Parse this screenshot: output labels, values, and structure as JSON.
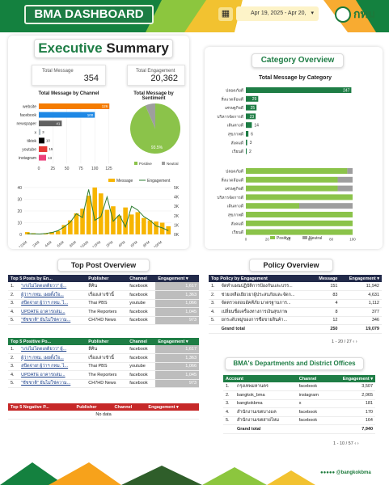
{
  "header": {
    "title": "BMA DASHBOARD",
    "date_range": "Apr 19, 2025 - Apr 20,",
    "brand": "กทม"
  },
  "exec": {
    "title_a": "Executive",
    "title_b": "Summary"
  },
  "kpi": {
    "total_message_label": "Total Message",
    "total_message": "354",
    "total_engagement_label": "Total Engagement",
    "total_engagement": "20,362"
  },
  "charts": {
    "channel": {
      "title": "Total Message by Channel",
      "type": "bar",
      "categories": [
        "website",
        "facebook",
        "newspaper",
        "x",
        "tiktok",
        "youtube",
        "instagram"
      ],
      "values": [
        126,
        100,
        41,
        3,
        10,
        15,
        13
      ],
      "labels": [
        "126",
        "100",
        "41",
        "3",
        "10",
        "15",
        "13"
      ],
      "colors": [
        "#f57c00",
        "#1e88e5",
        "#616161",
        "#b0bec5",
        "#000000",
        "#e53935",
        "#ec407a"
      ],
      "xticks": [
        "0",
        "25",
        "50",
        "75",
        "100",
        "125"
      ],
      "xlim": [
        0,
        130
      ]
    },
    "sentiment": {
      "title": "Total Message by Sentiment",
      "type": "pie",
      "slices": [
        {
          "name": "Positive",
          "value": 93.5,
          "color": "#8bc34a"
        },
        {
          "name": "Neutral",
          "value": 6.5,
          "color": "#9e9e9e"
        }
      ],
      "label": "93.5%",
      "legend": [
        "Positive",
        "Neutral"
      ]
    },
    "time": {
      "type": "bar+line",
      "legend": [
        "Message",
        "Engagement"
      ],
      "x": [
        "12AM",
        "2AM",
        "4AM",
        "6AM",
        "8AM",
        "10AM",
        "12PM",
        "2PM",
        "4PM",
        "6PM",
        "8PM",
        "10PM"
      ],
      "message": [
        2,
        1,
        0.5,
        1,
        2,
        3,
        8,
        12,
        18,
        22,
        33,
        40,
        35,
        21,
        24,
        16,
        23,
        17,
        19,
        14,
        12,
        11,
        10,
        7
      ],
      "engagement": [
        80,
        60,
        40,
        100,
        200,
        400,
        800,
        1300,
        2200,
        1800,
        4800,
        1500,
        1900,
        4000,
        1400,
        2100,
        800,
        3000,
        2600,
        1900,
        1500,
        900,
        700,
        400
      ],
      "yleft": [
        "0",
        "10",
        "20",
        "30",
        "40"
      ],
      "yright": [
        "0K",
        "1K",
        "2K",
        "3K",
        "4K",
        "5K"
      ]
    },
    "category": {
      "title": "Total Message by Category",
      "type": "bar",
      "categories": [
        "ปลอดภัยดี",
        "สิ่งแวดล้อมดี",
        "เศรษฐกิจดี",
        "บริหารจัดการดี",
        "เดินทางดี",
        "สุขภาพดี",
        "สังคมดี",
        "เรียนดี"
      ],
      "values": [
        247,
        29,
        25,
        23,
        14,
        6,
        3,
        2
      ],
      "labels": [
        "247",
        "29",
        "25",
        "23",
        "14",
        "6",
        "3",
        "2"
      ],
      "xlim": [
        0,
        250
      ]
    },
    "category_sentiment": {
      "type": "stacked-bar",
      "categories": [
        "ปลอดภัยดี",
        "สิ่งแวดล้อมดี",
        "เศรษฐกิจดี",
        "บริหารจัดการดี",
        "เดินทางดี",
        "สุขภาพดี",
        "สังคมดี",
        "เรียนดี"
      ],
      "positive": [
        0.95,
        0.86,
        0.86,
        1,
        0.5,
        1,
        1,
        1
      ],
      "xticks": [
        "0",
        "20",
        "40",
        "60",
        "80",
        "100"
      ],
      "legend": [
        "Positive",
        "Neutral"
      ]
    }
  },
  "top_post": {
    "title": "Top Post Overview",
    "posts": {
      "headers": [
        "Top 5 Posts by En...",
        "Publisher",
        "Channel",
        "Engagement"
      ],
      "rows": [
        [
          "1.",
          "\"เก่งไม่โดดเดดิยวว\" ผู้...",
          "ลีคิน",
          "facebook",
          "1,617"
        ],
        [
          "2.",
          "ผู้ว่าฯ กทม. เผยตั้งใจ...",
          "เรื่องเล่าเช้านี้",
          "facebook",
          "1,363"
        ],
        [
          "3.",
          "สปีดจ่าย! ผู้ว่าฯ กทม. ไ...",
          "Thai PBS",
          "youtube",
          "1,066"
        ],
        [
          "4.",
          "UPDATE อาคารถล่ม...",
          "The Reporters",
          "facebook",
          "1,045"
        ],
        [
          "5.",
          "\"ชัชชาติ\" ยันไม่ใช่ความ...",
          "CH7HD News",
          "facebook",
          "973"
        ]
      ]
    },
    "positive": {
      "headers": [
        "Top 5 Positive Po...",
        "Publisher",
        "Channel",
        "Engagement"
      ],
      "rows": [
        [
          "1.",
          "\"เก่งไม่โดดเดดิยวว\" ผู้...",
          "ลีคิน",
          "facebook",
          "1,617"
        ],
        [
          "2.",
          "ผู้ว่าฯ กทม. เผยตั้งใจ...",
          "เรื่องเล่าเช้านี้",
          "facebook",
          "1,363"
        ],
        [
          "3.",
          "สปีดจ่าย! ผู้ว่าฯ กทม. ไ...",
          "Thai PBS",
          "youtube",
          "1,066"
        ],
        [
          "4.",
          "UPDATE อาคารถล่ม...",
          "The Reporters",
          "facebook",
          "1,045"
        ],
        [
          "5.",
          "\"ชัชชาติ\" ยันไม่ใช่ความ...",
          "CH7HD News",
          "facebook",
          "973"
        ]
      ]
    },
    "negative": {
      "headers": [
        "Top 5 Negative P...",
        "Publisher",
        "Channel",
        "Engagement"
      ],
      "empty": "No data"
    }
  },
  "policy": {
    "title": "Policy Overview",
    "headers": [
      "Top Policy by Engagement",
      "Message",
      "Engagement"
    ],
    "rows": [
      [
        "1.",
        "จัดทำแผนปฏิบัติการป้องกันและบรร...",
        "151",
        "11,942"
      ],
      [
        "2.",
        "ช่วยเหลือเยียวยาผู้ประสบภัยและจัดก...",
        "83",
        "4,631"
      ],
      [
        "3.",
        "จัดตรวจสอบอัคคีภัย มาตรฐานการ...",
        "4",
        "1,112"
      ],
      [
        "4.",
        "เปลี่ยนชื่อเครื่องทางการเงินสุขภาพ",
        "8",
        "377"
      ],
      [
        "5.",
        "ยกระดับหมู่ของการซื้อขายสินค้า...",
        "12",
        "346"
      ]
    ],
    "total_label": "Grand total",
    "total_message": "250",
    "total_engagement": "19,079",
    "pager": "1 - 20 / 27"
  },
  "departments": {
    "title": "BMA's Departments and District Offices",
    "headers": [
      "Account",
      "Channel",
      "Engagement"
    ],
    "rows": [
      [
        "1.",
        "กรุงเทพมหานคร",
        "facebook",
        "3,507"
      ],
      [
        "2.",
        "bangkok_bma",
        "instagram",
        "2,065"
      ],
      [
        "3.",
        "bangkokbma",
        "x",
        "181"
      ],
      [
        "4.",
        "สำนักงานเขตบางแค",
        "facebook",
        "170"
      ],
      [
        "5.",
        "สำนักงานเขตสายไหม",
        "facebook",
        "164"
      ]
    ],
    "total_label": "Grand total",
    "total_engagement": "7,940",
    "pager": "1 - 10 / 57"
  },
  "footer": {
    "handle": "@bangkokbma"
  }
}
